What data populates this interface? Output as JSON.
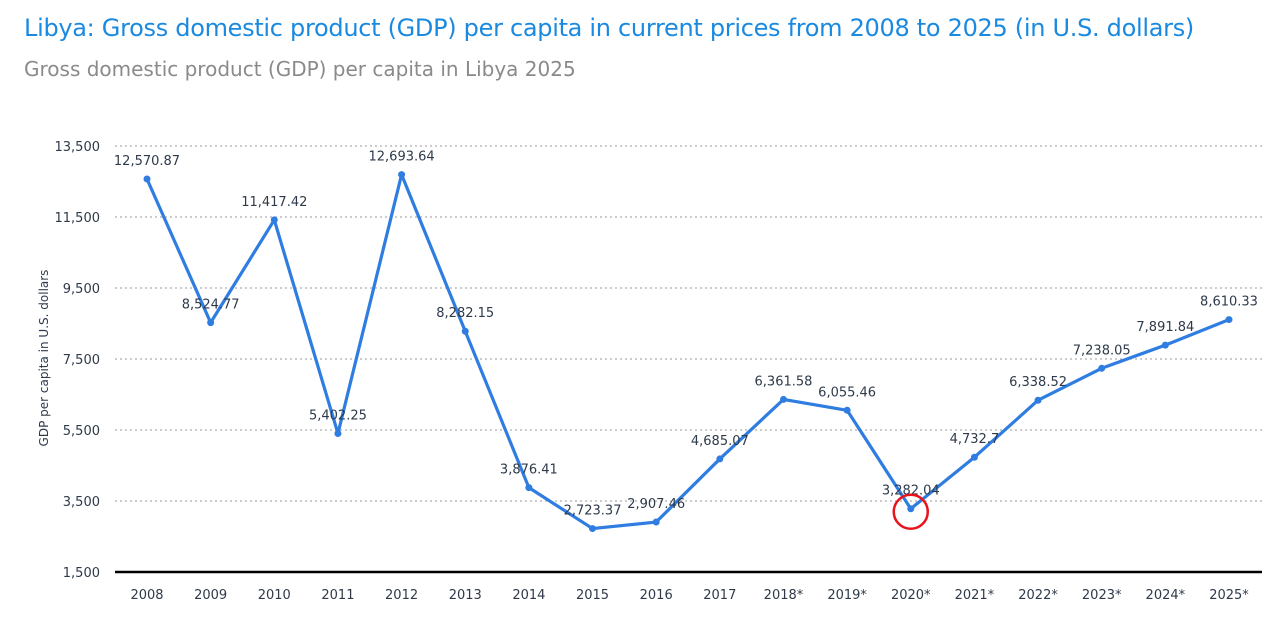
{
  "title": "Libya: Gross domestic product (GDP) per capita in current prices from 2008 to 2025 (in U.S. dollars)",
  "subtitle": "Gross domestic product (GDP) per capita in Libya 2025",
  "chart_data": {
    "type": "line",
    "title": "Libya: Gross domestic product (GDP) per capita in current prices from 2008 to 2025 (in U.S. dollars)",
    "xlabel": "",
    "ylabel": "GDP per capita in U.S. dollars",
    "categories": [
      "2008",
      "2009",
      "2010",
      "2011",
      "2012",
      "2013",
      "2014",
      "2015",
      "2016",
      "2017",
      "2018*",
      "2019*",
      "2020*",
      "2021*",
      "2022*",
      "2023*",
      "2024*",
      "2025*"
    ],
    "values": [
      12570.87,
      8524.77,
      11417.42,
      5402.25,
      12693.64,
      8282.15,
      3876.41,
      2723.37,
      2907.46,
      4685.07,
      6361.58,
      6055.46,
      3282.04,
      4732.7,
      6338.52,
      7238.05,
      7891.84,
      8610.33
    ],
    "data_labels": [
      "12,570.87",
      "8,524.77",
      "11,417.42",
      "5,402.25",
      "12,693.64",
      "8,282.15",
      "3,876.41",
      "2,723.37",
      "2,907.46",
      "4,685.07",
      "6,361.58",
      "6,055.46",
      "3,282.04",
      "4,732.7",
      "6,338.52",
      "7,238.05",
      "7,891.84",
      "8,610.33"
    ],
    "yticks": [
      "1,500",
      "3,500",
      "5,500",
      "7,500",
      "9,500",
      "11,500",
      "13,500"
    ],
    "ylim": [
      1500,
      13500
    ],
    "grid": true,
    "line_color": "#2f7de1",
    "highlight": {
      "category": "2020*",
      "color": "#e8141c"
    }
  }
}
